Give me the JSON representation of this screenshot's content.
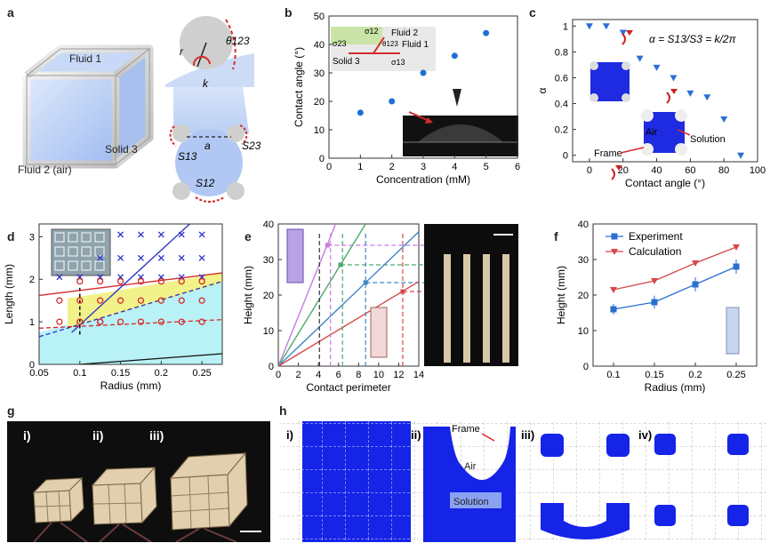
{
  "panels": {
    "a": {
      "label": "a",
      "cube_labels": {
        "fluid1": "Fluid 1",
        "solid3": "Solid 3",
        "fluid2": "Fluid 2 (air)"
      },
      "detail_labels": {
        "r": "r",
        "k": "k",
        "theta": "θ123",
        "a": "a",
        "s13": "S13",
        "s23": "S23",
        "s12": "S12"
      }
    },
    "b": {
      "label": "b",
      "inset": {
        "fluid2": "Fluid 2",
        "fluid1": "Fluid 1",
        "solid3": "Solid 3",
        "s12": "σ12",
        "s23": "σ23",
        "s13": "σ13",
        "theta": "θ123"
      }
    },
    "c": {
      "label": "c",
      "formula": "α = S13/S3 = k/2π",
      "annotations": {
        "air": "Air",
        "solution": "Solution",
        "frame": "Frame"
      }
    },
    "d": {
      "label": "d"
    },
    "e": {
      "label": "e"
    },
    "f": {
      "label": "f"
    },
    "g": {
      "label": "g",
      "sublabels": [
        "i)",
        "ii)",
        "iii)"
      ]
    },
    "h": {
      "label": "h",
      "sublabels": [
        "i)",
        "ii)",
        "iii)",
        "iv)"
      ],
      "annotations": {
        "frame": "Frame",
        "air": "Air",
        "solution": "Solution"
      }
    }
  },
  "chart_data": [
    {
      "id": "b",
      "type": "scatter",
      "xlabel": "Concentration (mM)",
      "ylabel": "Contact angle (°)",
      "xlim": [
        0,
        6
      ],
      "ylim": [
        0,
        50
      ],
      "xticks": [
        "0",
        "1",
        "2",
        "3",
        "4",
        "5",
        "6"
      ],
      "yticks": [
        "0",
        "10",
        "20",
        "30",
        "40",
        "50"
      ],
      "color": "#1f6fd1",
      "x": [
        1,
        2,
        3,
        4,
        5
      ],
      "y": [
        16,
        20,
        30,
        36,
        44
      ]
    },
    {
      "id": "c",
      "type": "scatter",
      "xlabel": "Contact angle (°)",
      "ylabel": "α",
      "xlim": [
        -10,
        100
      ],
      "ylim": [
        -0.05,
        1.05
      ],
      "xticks": [
        "0",
        "20",
        "40",
        "60",
        "80",
        "100"
      ],
      "yticks": [
        "0",
        "0.2",
        "0.4",
        "0.6",
        "0.8",
        "1"
      ],
      "color": "#2b6fd6",
      "x": [
        0,
        10,
        20,
        30,
        40,
        50,
        60,
        70,
        80,
        90
      ],
      "y": [
        1.0,
        1.0,
        0.95,
        0.75,
        0.68,
        0.6,
        0.48,
        0.45,
        0.28,
        0.0
      ]
    },
    {
      "id": "d",
      "type": "scatter",
      "xlabel": "Radius (mm)",
      "ylabel": "Length (mm)",
      "xlim": [
        0.05,
        0.275
      ],
      "ylim": [
        0,
        3.3
      ],
      "xticks": [
        "0.05",
        "0.1",
        "0.15",
        "0.2",
        "0.25"
      ],
      "yticks": [
        "0",
        "1",
        "2",
        "3"
      ],
      "series": [
        {
          "marker": "x",
          "color": "#2a2fc9",
          "x": [
            0.075,
            0.1,
            0.125,
            0.15,
            0.175,
            0.2,
            0.225,
            0.25,
            0.125,
            0.15,
            0.175,
            0.2,
            0.225,
            0.25,
            0.15,
            0.175,
            0.2,
            0.225,
            0.25
          ],
          "y": [
            2.05,
            2.05,
            2.05,
            2.5,
            2.5,
            2.5,
            2.5,
            2.5,
            2.5,
            3.05,
            3.05,
            3.05,
            3.05,
            3.05,
            2.05,
            2.05,
            2.05,
            2.05,
            2.05
          ]
        },
        {
          "marker": "o",
          "color": "#d62b2b",
          "x": [
            0.075,
            0.1,
            0.125,
            0.15,
            0.175,
            0.2,
            0.225,
            0.25,
            0.1,
            0.125,
            0.15,
            0.175,
            0.2,
            0.225,
            0.25,
            0.075,
            0.1,
            0.125,
            0.15,
            0.175,
            0.2,
            0.225,
            0.25,
            0.1,
            0.125
          ],
          "y": [
            1.5,
            1.5,
            1.5,
            1.5,
            1.5,
            1.5,
            1.5,
            1.5,
            1.95,
            1.95,
            1.95,
            1.95,
            1.95,
            1.95,
            1.95,
            1.0,
            1.0,
            1.0,
            1.0,
            1.0,
            1.0,
            1.0,
            1.0,
            1.0,
            1.0
          ]
        }
      ]
    },
    {
      "id": "e",
      "type": "line",
      "xlabel": "Contact perimeter",
      "ylabel": "Height (mm)",
      "xlim": [
        0,
        14
      ],
      "ylim": [
        0,
        40
      ],
      "xticks": [
        "0",
        "2",
        "4",
        "6",
        "8",
        "10",
        "12",
        "14"
      ],
      "yticks": [
        "0",
        "10",
        "20",
        "30",
        "40"
      ],
      "series": [
        {
          "color": "#c77be0",
          "slope": 7.0,
          "marker_x": 4.9,
          "marker_y": 34
        },
        {
          "color": "#4daa6c",
          "slope": 4.6,
          "marker_x": 6.2,
          "marker_y": 28.5
        },
        {
          "color": "#3e86c7",
          "slope": 2.7,
          "marker_x": 8.7,
          "marker_y": 23.5
        },
        {
          "color": "#d8474a",
          "slope": 1.7,
          "marker_x": 12.4,
          "marker_y": 21
        }
      ],
      "dashed_x": [
        4.1,
        5.2,
        6.4,
        8.7,
        12.4
      ]
    },
    {
      "id": "f",
      "type": "line",
      "xlabel": "Radius (mm)",
      "ylabel": "Height (mm)",
      "xlim": [
        0.075,
        0.275
      ],
      "ylim": [
        0,
        40
      ],
      "xticks": [
        "0.1",
        "0.15",
        "0.2",
        "0.25"
      ],
      "yticks": [
        "0",
        "10",
        "20",
        "30",
        "40"
      ],
      "categories": [
        0.1,
        0.15,
        0.2,
        0.25
      ],
      "series": [
        {
          "name": "Experiment",
          "color": "#2a6fd0",
          "marker": "square",
          "values": [
            16,
            18,
            23,
            28
          ],
          "errors": [
            1.5,
            1.8,
            2.0,
            2.0
          ]
        },
        {
          "name": "Calculation",
          "color": "#d8474a",
          "marker": "triangle",
          "values": [
            21.5,
            24,
            29,
            33.5
          ]
        }
      ]
    }
  ]
}
